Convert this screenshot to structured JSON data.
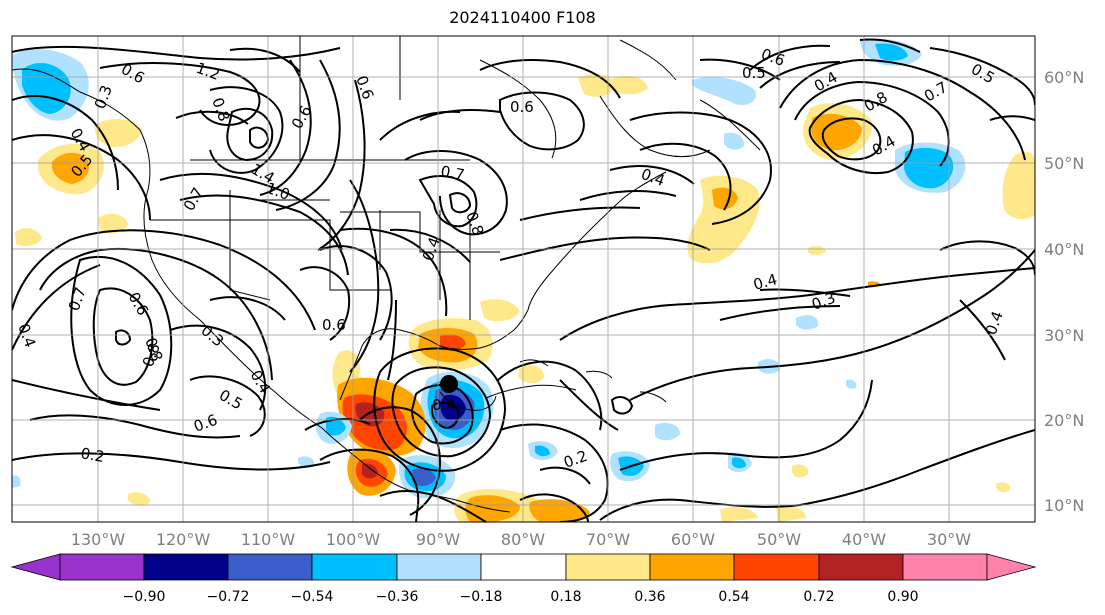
{
  "title": "2024110400 F108",
  "colors": {
    "neg_090": "#9932cc",
    "neg_072": "#00008b",
    "neg_054": "#3a5fcd",
    "neg_036": "#00bfff",
    "neg_018": "#b0e2ff",
    "zero": "#ffffff",
    "pos_018": "#ffe88a",
    "pos_036": "#ffa500",
    "pos_054": "#ff4500",
    "pos_072": "#b22222",
    "pos_090": "#ff82ab",
    "contour": "#000000",
    "grid": "#a0a0a0"
  },
  "latitude_labels": [
    "60°N",
    "50°N",
    "40°N",
    "30°N",
    "20°N",
    "10°N"
  ],
  "longitude_labels": [
    "130°W",
    "120°W",
    "110°W",
    "100°W",
    "90°W",
    "80°W",
    "70°W",
    "60°W",
    "50°W",
    "40°W",
    "30°W"
  ],
  "colorbar_labels": [
    "−0.90",
    "−0.72",
    "−0.54",
    "−0.36",
    "−0.18",
    "0.18",
    "0.36",
    "0.54",
    "0.72",
    "0.90"
  ],
  "contour_labels": [
    "0.6",
    "1.2",
    "0.8",
    "0.3",
    "0.4",
    "0.5",
    "0.6",
    "0.6",
    "0.7",
    "0.8",
    "1.4",
    "1.0",
    "0.7",
    "0.6",
    "0.4",
    "0.8",
    "0.4",
    "0.5",
    "0.6",
    "0.4",
    "0.8",
    "0.7",
    "0.5",
    "0.4",
    "0.7",
    "0.6",
    "0.8",
    "0.3",
    "0.5",
    "0.4",
    "0.6",
    "0.6",
    "0.2",
    "0.4",
    "0.3",
    "0.4",
    "0.2",
    "0.4",
    "0.4"
  ]
}
